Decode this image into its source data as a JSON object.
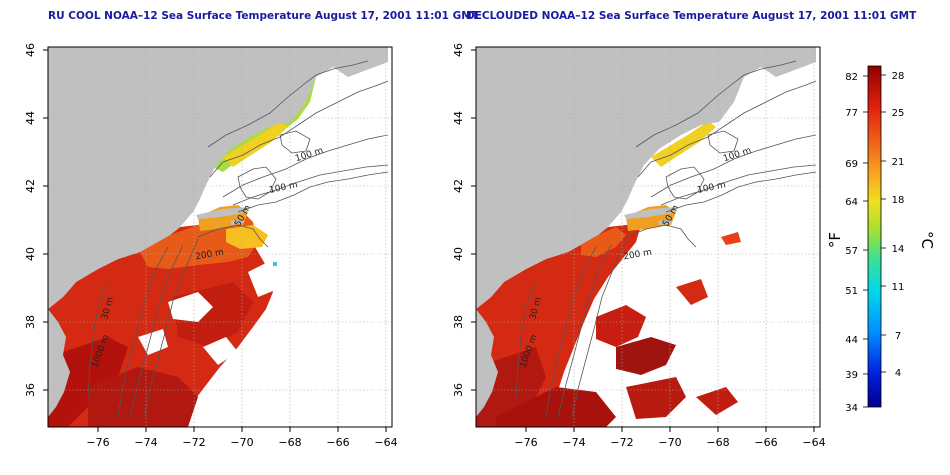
{
  "left_panel": {
    "title": "RU COOL NOAA–12 Sea Surface Temperature August 17, 2001 11:01 GMT"
  },
  "right_panel": {
    "title": "DECLOUDED NOAA–12 Sea Surface Temperature August 17, 2001 11:01 GMT"
  },
  "axes": {
    "x_ticks": [
      "−76",
      "−74",
      "−72",
      "−70",
      "−68",
      "−66",
      "−64"
    ],
    "y_ticks": [
      "36",
      "38",
      "40",
      "42",
      "44",
      "46"
    ]
  },
  "contour_labels": {
    "c100a": "100 m",
    "c100b": "100 m",
    "c50": "50 m",
    "c200": "200 m",
    "c30": "30 m",
    "c1000": "1000 m"
  },
  "colorbar": {
    "fahrenheit_label": "°F",
    "celsius_label": "°C",
    "fahrenheit_ticks": [
      "82",
      "77",
      "69",
      "64",
      "57",
      "51",
      "44",
      "39",
      "34"
    ],
    "celsius_ticks": [
      "28",
      "25",
      "21",
      "18",
      "14",
      "11",
      "7",
      "4"
    ]
  },
  "colors": {
    "land": "#c0c0c0",
    "sst_warm": "#d42a14",
    "sst_hot": "#b3120c",
    "sst_mid": "#f0a020",
    "sst_cool": "#a8dc40",
    "sst_cold": "#40d0d0",
    "contour": "#555555",
    "title": "#1a1aa0"
  }
}
